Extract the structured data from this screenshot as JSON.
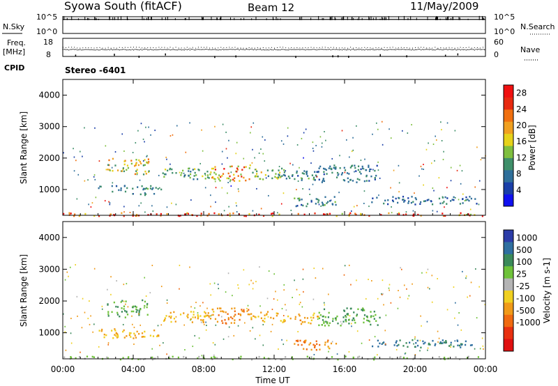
{
  "header": {
    "station": "Syowa South (fitACF)",
    "beam": "Beam 12",
    "date": "11/May/2009"
  },
  "nsky_panel": {
    "left_label": "N.Sky",
    "right_label": "N.Search",
    "left_ticks": [
      "10^5",
      "10^0"
    ],
    "right_ticks": [
      "10^5",
      "10^0"
    ]
  },
  "freq_panel": {
    "left_label_line1": "Freq.",
    "left_label_line2": "[MHz]",
    "right_label": "Nave",
    "left_ticks": [
      "18",
      "8"
    ],
    "right_ticks": [
      "60",
      "0"
    ]
  },
  "cpid": {
    "label": "CPID",
    "value": "Stereo -6401"
  },
  "colors": {
    "background": "#ffffff",
    "axis": "#000000",
    "power_scale": [
      "#1010f0",
      "#1a3fa8",
      "#2f6f9a",
      "#3f8f6a",
      "#7fbf3f",
      "#e6d21a",
      "#f0a020",
      "#f07010",
      "#e82a10",
      "#f01010"
    ],
    "velocity_scale": [
      "#2c3ca8",
      "#2f6fa0",
      "#3b8a5a",
      "#6fc23a",
      "#b4b4b4",
      "#f0d020",
      "#f09a18",
      "#f06a10",
      "#e83010",
      "#e01010"
    ]
  },
  "chart_data": [
    {
      "type": "line",
      "title": "",
      "xlabel": "",
      "ylabel": "N.Sky",
      "y2label": "N.Search",
      "x_range_hours": [
        0,
        24
      ],
      "description_series": [
        {
          "name": "N.Sky",
          "level_log10": 4.2,
          "style": "solid"
        },
        {
          "name": "N.Search",
          "level_log10": 4.2,
          "style": "dotted"
        }
      ]
    },
    {
      "type": "scatter",
      "title": "",
      "xlabel": "",
      "ylabel": "Freq. [MHz]",
      "y2label": "Nave",
      "ylim": [
        8,
        18
      ],
      "y2lim": [
        0,
        60
      ],
      "x_range_hours": [
        0,
        24
      ],
      "series": [
        {
          "name": "Freq.",
          "typical_value": 12.0
        },
        {
          "name": "Nave",
          "typical_value": 30
        }
      ],
      "dropouts_hours": [
        0.7,
        2.9,
        4.3,
        5.8,
        8.6,
        9.8,
        13.2,
        15.3,
        15.6,
        16.2,
        18.0,
        19.5,
        21.7,
        22.4
      ]
    },
    {
      "type": "heatmap",
      "title": "",
      "xlabel": "Time UT",
      "ylabel": "Slant Range [km]",
      "colorbar_label": "Power [dB]",
      "x_range_hours": [
        0,
        24
      ],
      "ylim": [
        180,
        4500
      ],
      "yticks": [
        1000,
        2000,
        3000,
        4000
      ],
      "color_ticks": [
        4,
        8,
        12,
        16,
        20,
        24,
        28
      ],
      "clim": [
        0,
        30
      ],
      "regions": [
        {
          "t0": 2.5,
          "t1": 4.9,
          "r0": 1500,
          "r1": 2050,
          "value": 17
        },
        {
          "t0": 2.0,
          "t1": 5.6,
          "r0": 850,
          "r1": 1150,
          "value": 9
        },
        {
          "t0": 5.6,
          "t1": 8.6,
          "r0": 1350,
          "r1": 1700,
          "value": 12
        },
        {
          "t0": 8.4,
          "t1": 10.6,
          "r0": 1300,
          "r1": 1800,
          "value": 20
        },
        {
          "t0": 10.6,
          "t1": 12.6,
          "r0": 1350,
          "r1": 1700,
          "value": 13
        },
        {
          "t0": 12.5,
          "t1": 14.5,
          "r0": 1300,
          "r1": 1650,
          "value": 9
        },
        {
          "t0": 14.5,
          "t1": 18.0,
          "r0": 1250,
          "r1": 1800,
          "value": 8
        },
        {
          "t0": 13.0,
          "t1": 15.5,
          "r0": 480,
          "r1": 800,
          "value": 9
        },
        {
          "t0": 17.5,
          "t1": 23.5,
          "r0": 550,
          "r1": 800,
          "value": 7
        },
        {
          "t0": 0.0,
          "t1": 24.0,
          "r0": 180,
          "r1": 280,
          "value": 24
        }
      ]
    },
    {
      "type": "heatmap",
      "title": "",
      "xlabel": "Time UT",
      "ylabel": "Slant Range [km]",
      "colorbar_label": "Velocity [m s-1]",
      "x_range_hours": [
        0,
        24
      ],
      "ylim": [
        180,
        4500
      ],
      "yticks": [
        1000,
        2000,
        3000,
        4000
      ],
      "xticks": [
        "00:00",
        "04:00",
        "08:00",
        "12:00",
        "16:00",
        "20:00",
        "00:00"
      ],
      "color_ticks": [
        "1000",
        "500",
        "100",
        "25",
        "-25",
        "-100",
        "-500",
        "-1000"
      ],
      "regions": [
        {
          "t0": 2.5,
          "t1": 4.9,
          "r0": 1500,
          "r1": 2050,
          "value": 100
        },
        {
          "t0": 2.0,
          "t1": 5.6,
          "r0": 850,
          "r1": 1150,
          "value": -100
        },
        {
          "t0": 5.6,
          "t1": 8.6,
          "r0": 1350,
          "r1": 1700,
          "value": -100
        },
        {
          "t0": 8.4,
          "t1": 10.6,
          "r0": 1300,
          "r1": 1800,
          "value": -500
        },
        {
          "t0": 10.6,
          "t1": 12.6,
          "r0": 1350,
          "r1": 1700,
          "value": -100
        },
        {
          "t0": 12.5,
          "t1": 14.5,
          "r0": 1300,
          "r1": 1650,
          "value": -100
        },
        {
          "t0": 14.5,
          "t1": 18.0,
          "r0": 1250,
          "r1": 1800,
          "value": 100
        },
        {
          "t0": 13.0,
          "t1": 15.5,
          "r0": 480,
          "r1": 800,
          "value": -500
        },
        {
          "t0": 17.5,
          "t1": 23.5,
          "r0": 550,
          "r1": 800,
          "value": 500
        },
        {
          "t0": 0.0,
          "t1": 24.0,
          "r0": 180,
          "r1": 280,
          "value": 25
        }
      ]
    }
  ]
}
